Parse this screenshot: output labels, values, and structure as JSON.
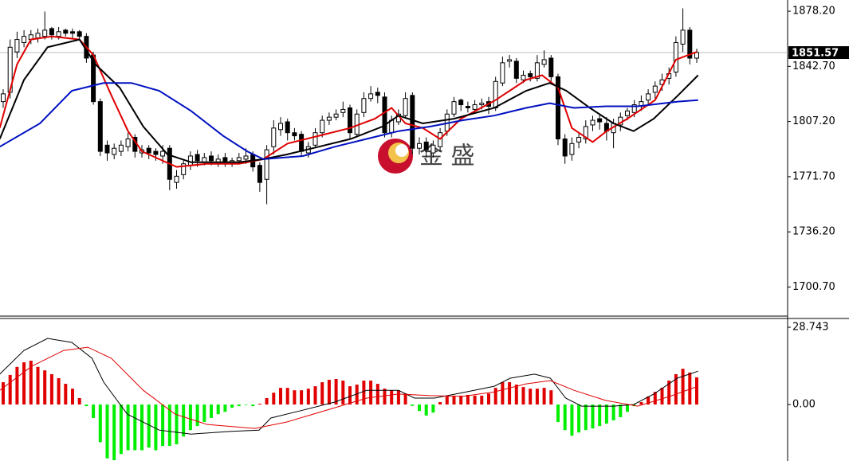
{
  "chart_data": [
    {
      "type": "candlestick",
      "watermark": "金 盛",
      "ylim": [
        1682,
        1885.4
      ],
      "yticks": [
        {
          "value": 1878.2,
          "label": "1878.20"
        },
        {
          "value": 1842.7,
          "label": "1842.70"
        },
        {
          "value": 1807.2,
          "label": "1807.20"
        },
        {
          "value": 1771.7,
          "label": "1771.70"
        },
        {
          "value": 1736.2,
          "label": "1736.20"
        },
        {
          "value": 1700.7,
          "label": "1700.70"
        }
      ],
      "last_price": 1851.57,
      "up_color": "#ffffff",
      "down_color": "#000000",
      "open": [
        1820,
        1826,
        1852,
        1858,
        1860,
        1861,
        1862,
        1867,
        1862,
        1866,
        1865,
        1865,
        1862,
        1850,
        1820,
        1792,
        1786,
        1788,
        1791,
        1797,
        1787,
        1790,
        1788,
        1785,
        1790,
        1768,
        1773,
        1779,
        1786,
        1781,
        1785,
        1781,
        1784,
        1780,
        1782,
        1783,
        1786,
        1779,
        1770,
        1791,
        1802,
        1807,
        1800,
        1799,
        1787,
        1792,
        1800,
        1808,
        1810,
        1813,
        1816,
        1799,
        1813,
        1822,
        1826,
        1823,
        1800,
        1807,
        1811,
        1824,
        1790,
        1794,
        1787,
        1791,
        1801,
        1812,
        1821,
        1817,
        1815,
        1818,
        1820,
        1816,
        1832,
        1846,
        1846,
        1834,
        1838,
        1835,
        1844,
        1848,
        1836,
        1796,
        1786,
        1794,
        1796,
        1805,
        1809,
        1806,
        1800,
        1805,
        1811,
        1813,
        1817,
        1821,
        1826,
        1831,
        1835,
        1839,
        1857,
        1866,
        1848
      ],
      "high": [
        1828,
        1860,
        1865,
        1866,
        1866,
        1867,
        1878,
        1868,
        1868,
        1867,
        1867,
        1866,
        1864,
        1852,
        1822,
        1795,
        1793,
        1795,
        1800,
        1799,
        1792,
        1792,
        1790,
        1792,
        1792,
        1776,
        1782,
        1788,
        1789,
        1787,
        1788,
        1786,
        1787,
        1784,
        1787,
        1790,
        1788,
        1781,
        1792,
        1808,
        1810,
        1809,
        1803,
        1801,
        1794,
        1803,
        1811,
        1813,
        1815,
        1820,
        1818,
        1815,
        1826,
        1830,
        1829,
        1826,
        1811,
        1815,
        1826,
        1826,
        1797,
        1797,
        1795,
        1803,
        1815,
        1823,
        1822,
        1820,
        1821,
        1822,
        1823,
        1836,
        1849,
        1850,
        1848,
        1840,
        1840,
        1850,
        1853,
        1850,
        1838,
        1799,
        1797,
        1800,
        1808,
        1811,
        1812,
        1810,
        1809,
        1813,
        1816,
        1821,
        1824,
        1828,
        1833,
        1838,
        1842,
        1862,
        1880,
        1868,
        1854
      ],
      "low": [
        1816,
        1822,
        1848,
        1855,
        1857,
        1858,
        1860,
        1860,
        1860,
        1862,
        1861,
        1860,
        1845,
        1818,
        1785,
        1782,
        1783,
        1785,
        1788,
        1784,
        1784,
        1783,
        1782,
        1780,
        1763,
        1764,
        1770,
        1776,
        1778,
        1779,
        1779,
        1778,
        1778,
        1778,
        1780,
        1780,
        1775,
        1762,
        1754,
        1786,
        1798,
        1795,
        1795,
        1785,
        1784,
        1790,
        1797,
        1805,
        1808,
        1810,
        1796,
        1797,
        1810,
        1820,
        1819,
        1797,
        1797,
        1805,
        1809,
        1786,
        1786,
        1784,
        1784,
        1788,
        1798,
        1810,
        1814,
        1813,
        1813,
        1815,
        1812,
        1814,
        1830,
        1842,
        1832,
        1832,
        1833,
        1833,
        1842,
        1832,
        1792,
        1780,
        1782,
        1790,
        1793,
        1801,
        1802,
        1795,
        1790,
        1801,
        1808,
        1810,
        1814,
        1818,
        1822,
        1827,
        1831,
        1836,
        1852,
        1844,
        1845
      ],
      "close": [
        1825,
        1855,
        1860,
        1862,
        1863,
        1864,
        1866,
        1863,
        1865,
        1864,
        1864,
        1862,
        1848,
        1820,
        1788,
        1787,
        1790,
        1792,
        1796,
        1788,
        1789,
        1787,
        1786,
        1788,
        1770,
        1772,
        1780,
        1785,
        1782,
        1784,
        1782,
        1783,
        1781,
        1782,
        1784,
        1785,
        1778,
        1768,
        1789,
        1803,
        1806,
        1800,
        1798,
        1788,
        1791,
        1800,
        1808,
        1810,
        1812,
        1815,
        1800,
        1812,
        1822,
        1825,
        1824,
        1800,
        1808,
        1812,
        1822,
        1790,
        1793,
        1789,
        1792,
        1800,
        1812,
        1820,
        1818,
        1816,
        1818,
        1819,
        1817,
        1833,
        1845,
        1847,
        1835,
        1837,
        1836,
        1845,
        1847,
        1836,
        1796,
        1785,
        1793,
        1797,
        1804,
        1808,
        1807,
        1801,
        1806,
        1810,
        1814,
        1818,
        1820,
        1825,
        1830,
        1834,
        1838,
        1858,
        1866,
        1848,
        1851.57
      ],
      "series": [
        {
          "color": "#e00000",
          "x": [
            -0.5,
            2,
            4,
            7,
            11,
            13,
            15.6,
            18,
            20,
            25,
            29.4,
            34,
            37.5,
            41,
            45.5,
            50,
            53.6,
            56,
            58,
            60.5,
            63,
            66,
            71,
            75.4,
            77.7,
            80,
            82,
            85,
            87,
            90,
            94,
            97,
            100
          ],
          "values": [
            1803,
            1844,
            1860,
            1862,
            1860,
            1850,
            1824,
            1801,
            1788,
            1778,
            1780,
            1780,
            1783,
            1793,
            1798,
            1803,
            1809,
            1816,
            1806,
            1803,
            1796,
            1809,
            1821,
            1834,
            1837,
            1829,
            1803,
            1794,
            1801,
            1809,
            1821,
            1847,
            1852
          ]
        },
        {
          "color": "#000000",
          "x": [
            -0.5,
            3,
            6.4,
            11,
            13.3,
            16.8,
            20.2,
            23.7,
            27.1,
            34,
            37.5,
            40.9,
            45.5,
            50.1,
            54.7,
            57,
            60.5,
            65,
            70.8,
            75.4,
            78.8,
            81.2,
            84.6,
            88,
            90.9,
            93.8,
            97.3,
            100.2
          ],
          "values": [
            1796,
            1834,
            1855,
            1860,
            1844,
            1829,
            1804,
            1786,
            1781,
            1781,
            1783,
            1786,
            1791,
            1796,
            1804,
            1811,
            1806,
            1809,
            1816,
            1827,
            1832,
            1827,
            1816,
            1806,
            1801,
            1809,
            1824,
            1837
          ]
        },
        {
          "color": "#0010c0",
          "x": [
            -0.5,
            5.3,
            9.9,
            14.5,
            18.5,
            22.5,
            27.1,
            31.7,
            35.2,
            37.5,
            43.2,
            47.8,
            52.4,
            57,
            61.6,
            66.2,
            70.8,
            75.4,
            78.8,
            82.3,
            86.9,
            91.5,
            97.3,
            100.2
          ],
          "values": [
            1791,
            1806,
            1827,
            1832,
            1832,
            1827,
            1814,
            1798,
            1788,
            1783,
            1785,
            1791,
            1796,
            1801,
            1804,
            1808,
            1811,
            1816,
            1819,
            1816,
            1817,
            1817,
            1820,
            1821
          ]
        }
      ]
    },
    {
      "type": "macd",
      "ylim": [
        -21,
        32
      ],
      "yticks": [
        28.743,
        {
          "value": 0,
          "label": "0.00"
        }
      ],
      "up_color": "#e00000",
      "down_color": "#00ee00",
      "values": [
        8.3,
        11,
        14,
        15.7,
        16.3,
        14,
        12.7,
        11.3,
        9.8,
        7.7,
        5.9,
        2.4,
        -0.6,
        -5,
        -14,
        -20,
        -20.7,
        -18.4,
        -17,
        -17,
        -17,
        -16,
        -17,
        -15.4,
        -15.4,
        -14.8,
        -11.9,
        -9.5,
        -8,
        -6.5,
        -5,
        -3.6,
        -2.7,
        -1.2,
        -0.6,
        -0.2,
        -0.6,
        0.3,
        2.4,
        4.4,
        6.2,
        6.2,
        5.3,
        5.3,
        5.9,
        6.8,
        8.3,
        9.2,
        9.5,
        8.9,
        6.8,
        7.4,
        8.9,
        8.9,
        7.7,
        5.9,
        5.3,
        5.3,
        4.1,
        -0.5,
        -2.4,
        -4.1,
        -3,
        0.9,
        3,
        3.3,
        3.3,
        3.6,
        3.3,
        3.3,
        4.1,
        6.2,
        8.3,
        8.3,
        7.4,
        6.5,
        5.9,
        5.9,
        6.2,
        5.3,
        -6.5,
        -9.5,
        -11.6,
        -10.4,
        -9.5,
        -8.9,
        -8,
        -7.1,
        -5.9,
        -4.7,
        -2.7,
        -0.6,
        0.9,
        3,
        4.7,
        6.2,
        8.9,
        11.3,
        13.3,
        11.9,
        10.1
      ],
      "series": [
        {
          "color": "#000000",
          "x": [
            -0.5,
            3,
            6.4,
            9.9,
            12.8,
            14.5,
            17.9,
            22.5,
            27.1,
            32.9,
            36.9,
            38.6,
            43.2,
            47.8,
            52.4,
            57,
            59.3,
            62.2,
            66.2,
            70.8,
            73.1,
            76.6,
            78.9,
            81.1,
            83.4,
            88,
            90.9,
            93.8,
            97.2,
            100.2
          ],
          "values": [
            11.3,
            20.1,
            24.6,
            23.1,
            17.2,
            8.3,
            -3.6,
            -9.5,
            -11,
            -10,
            -9.5,
            -5,
            -2.1,
            0.9,
            5.3,
            5.3,
            2.4,
            2.4,
            4.4,
            6.8,
            9.8,
            11.3,
            9.8,
            2.4,
            -0.6,
            -0.6,
            0,
            3.9,
            9.8,
            12.4
          ]
        },
        {
          "color": "#e00000",
          "x": [
            -0.5,
            4.1,
            8.7,
            12.2,
            15.6,
            20.2,
            24.8,
            29.4,
            36.3,
            40.9,
            47.8,
            52.4,
            57,
            61.6,
            66.2,
            70.8,
            75.4,
            78.9,
            82.3,
            86.9,
            91.5,
            96.1,
            100.2
          ],
          "values": [
            5.3,
            14.2,
            20.1,
            21.3,
            17.2,
            5.3,
            -3.6,
            -7.4,
            -8.9,
            -6.5,
            -1.2,
            2.4,
            3.9,
            3.3,
            3,
            4.7,
            7.7,
            8.9,
            5.3,
            1.5,
            -0.6,
            3,
            6.8
          ]
        }
      ]
    }
  ]
}
